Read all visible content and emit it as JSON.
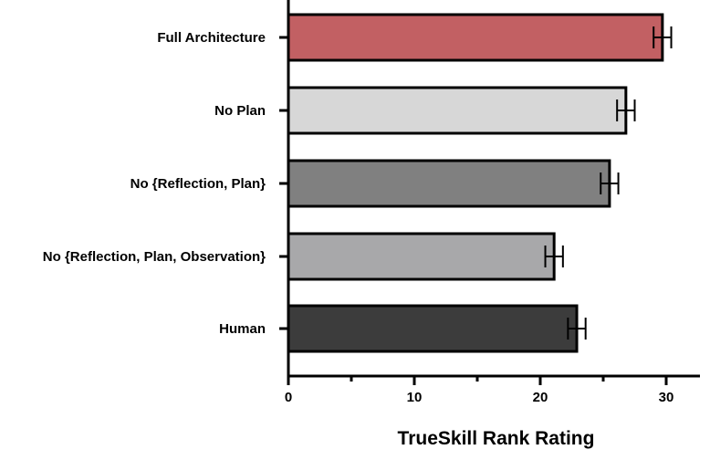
{
  "chart_data": {
    "type": "bar",
    "orientation": "horizontal",
    "title": "",
    "xlabel": "TrueSkill Rank Rating",
    "ylabel": "",
    "xlim": [
      0,
      32.7
    ],
    "x_ticks": [
      0,
      10,
      20,
      30
    ],
    "x_minor_ticks": [
      5,
      15,
      25
    ],
    "grid": false,
    "legend": "none",
    "categories": [
      "Full Architecture",
      "No Plan",
      "No {Reflection, Plan}",
      "No {Reflection, Plan, Observation}",
      "Human"
    ],
    "values": [
      29.7,
      26.8,
      25.5,
      21.1,
      22.9
    ],
    "error": [
      0.7,
      0.7,
      0.7,
      0.7,
      0.7
    ],
    "colors": [
      "#c26063",
      "#d7d7d7",
      "#808080",
      "#a8a8aa",
      "#3c3c3c"
    ]
  }
}
